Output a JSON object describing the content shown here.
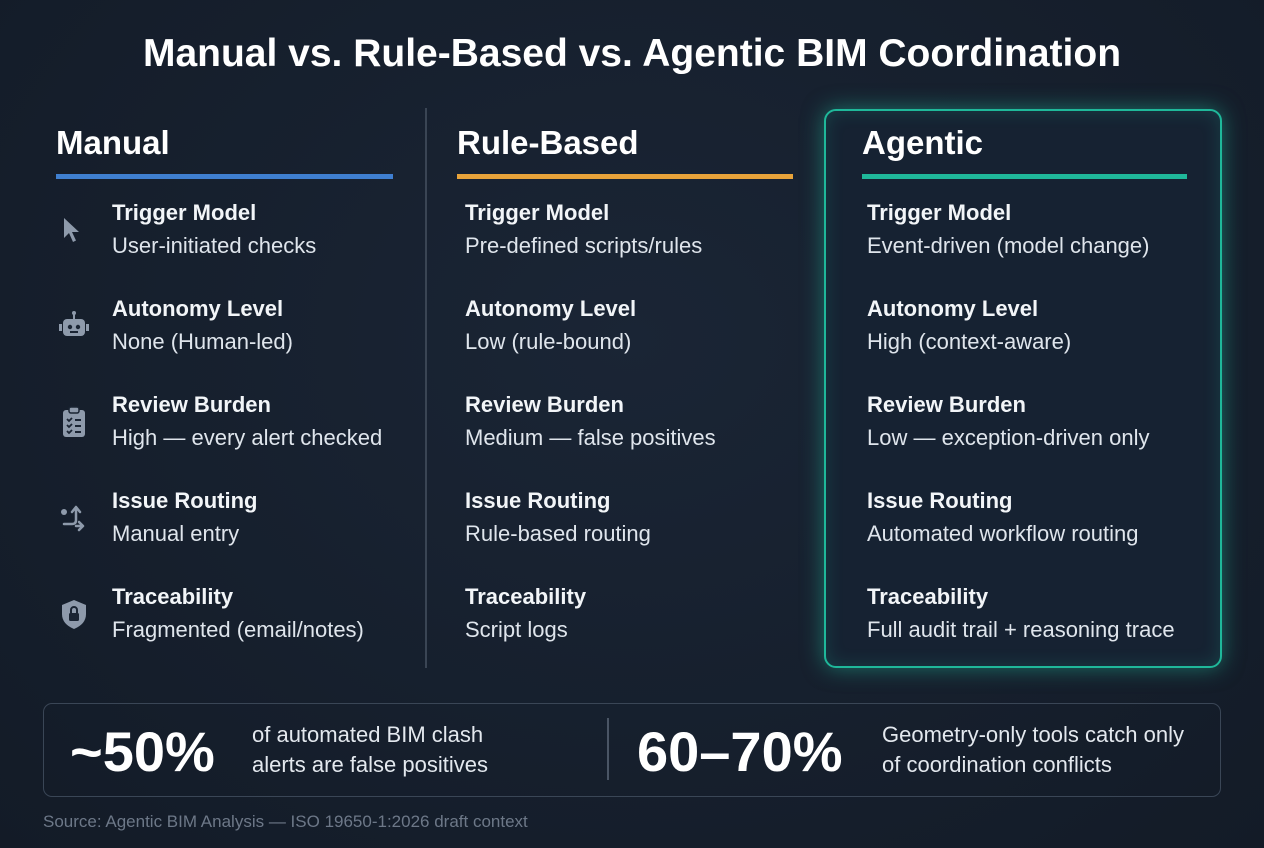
{
  "title": "Manual vs. Rule-Based vs. Agentic BIM Coordination",
  "columns": [
    {
      "heading": "Manual",
      "color": "#3f7fd0",
      "rows": [
        {
          "label": "Trigger Model",
          "value": "User-initiated checks"
        },
        {
          "label": "Autonomy Level",
          "value": "None (Human-led)"
        },
        {
          "label": "Review Burden",
          "value": "High — every alert checked"
        },
        {
          "label": "Issue Routing",
          "value": "Manual entry"
        },
        {
          "label": "Traceability",
          "value": "Fragmented (email/notes)"
        }
      ]
    },
    {
      "heading": "Rule-Based",
      "color": "#e8a33a",
      "rows": [
        {
          "label": "Trigger Model",
          "value": "Pre-defined scripts/rules"
        },
        {
          "label": "Autonomy Level",
          "value": "Low (rule-bound)"
        },
        {
          "label": "Review Burden",
          "value": "Medium — false positives"
        },
        {
          "label": "Issue Routing",
          "value": "Rule-based routing"
        },
        {
          "label": "Traceability",
          "value": "Script logs"
        }
      ]
    },
    {
      "heading": "Agentic",
      "color": "#1fb89a",
      "highlighted": true,
      "rows": [
        {
          "label": "Trigger Model",
          "value": "Event-driven (model change)"
        },
        {
          "label": "Autonomy Level",
          "value": "High (context-aware)"
        },
        {
          "label": "Review Burden",
          "value": "Low — exception-driven only"
        },
        {
          "label": "Issue Routing",
          "value": "Automated workflow routing"
        },
        {
          "label": "Traceability",
          "value": "Full audit trail + reasoning trace"
        }
      ]
    }
  ],
  "stats": [
    {
      "figure": "~50%",
      "lines": [
        "of automated BIM clash",
        "alerts are false positives"
      ]
    },
    {
      "figure": "60–70%",
      "lines": [
        "Geometry-only tools catch only",
        "of coordination conflicts"
      ]
    }
  ],
  "source": "Source: Agentic BIM Analysis — ISO 19650-1:2026 draft context"
}
